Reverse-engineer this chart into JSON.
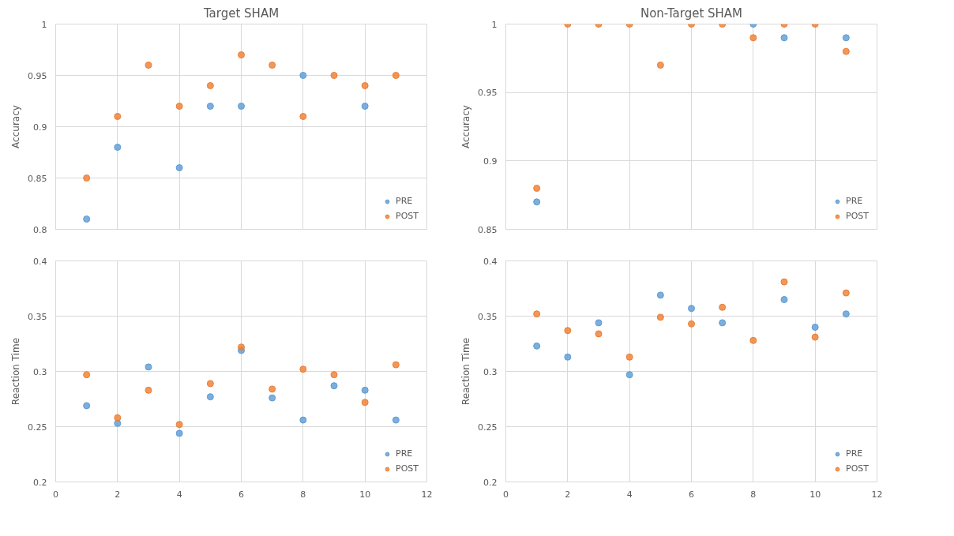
{
  "chart_data": [
    {
      "type": "scatter",
      "title": "Target SHAM",
      "ylabel": "Accuracy",
      "x": [
        1,
        2,
        3,
        4,
        5,
        6,
        7,
        8,
        9,
        10,
        11
      ],
      "xlim": [
        0,
        12
      ],
      "xticks": [
        0,
        2,
        4,
        6,
        8,
        10,
        12
      ],
      "ylim": [
        0.8,
        1
      ],
      "yticks": [
        0.8,
        0.85,
        0.9,
        0.95,
        1
      ],
      "tick_labels": "y",
      "grid": true,
      "legend": "bottom right",
      "marker": "circle",
      "series": [
        {
          "name": "PRE",
          "color": "#5b9bd5",
          "values": [
            0.81,
            0.88,
            null,
            0.86,
            0.92,
            0.92,
            null,
            0.95,
            null,
            0.92,
            null
          ]
        },
        {
          "name": "POST",
          "color": "#ed7d31",
          "values": [
            0.85,
            0.91,
            0.96,
            0.92,
            0.94,
            0.97,
            0.96,
            0.91,
            0.95,
            0.94,
            0.95
          ]
        }
      ]
    },
    {
      "type": "scatter",
      "title": "Non-Target SHAM",
      "ylabel": "Accuracy",
      "x": [
        1,
        2,
        3,
        4,
        5,
        6,
        7,
        8,
        9,
        10,
        11
      ],
      "xlim": [
        0,
        12
      ],
      "xticks": [
        0,
        2,
        4,
        6,
        8,
        10,
        12
      ],
      "ylim": [
        0.85,
        1
      ],
      "yticks": [
        0.85,
        0.9,
        0.95,
        1
      ],
      "tick_labels": "y",
      "grid": true,
      "legend": "bottom right",
      "marker": "circle",
      "series": [
        {
          "name": "PRE",
          "color": "#5b9bd5",
          "values": [
            0.87,
            null,
            null,
            null,
            null,
            null,
            null,
            1.0,
            0.99,
            null,
            0.99
          ]
        },
        {
          "name": "POST",
          "color": "#ed7d31",
          "values": [
            0.88,
            1.0,
            1.0,
            1.0,
            0.97,
            1.0,
            1.0,
            0.99,
            1.0,
            1.0,
            0.98
          ]
        }
      ]
    },
    {
      "type": "scatter",
      "ylabel": "Reaction Time",
      "x": [
        1,
        2,
        3,
        4,
        5,
        6,
        7,
        8,
        9,
        10,
        11
      ],
      "xlim": [
        0,
        12
      ],
      "xticks": [
        0,
        2,
        4,
        6,
        8,
        10,
        12
      ],
      "ylim": [
        0.2,
        0.4
      ],
      "yticks": [
        0.2,
        0.25,
        0.3,
        0.35,
        0.4
      ],
      "grid": true,
      "legend": "bottom right",
      "marker": "circle",
      "series": [
        {
          "name": "PRE",
          "color": "#5b9bd5",
          "values": [
            0.269,
            0.253,
            0.304,
            0.244,
            0.277,
            0.319,
            0.276,
            0.256,
            0.287,
            0.283,
            0.256
          ]
        },
        {
          "name": "POST",
          "color": "#ed7d31",
          "values": [
            0.297,
            0.258,
            0.283,
            0.252,
            0.289,
            0.322,
            0.284,
            0.302,
            0.297,
            0.272,
            0.306
          ]
        }
      ]
    },
    {
      "type": "scatter",
      "ylabel": "Reaction Time",
      "x": [
        1,
        2,
        3,
        4,
        5,
        6,
        7,
        8,
        9,
        10,
        11
      ],
      "xlim": [
        0,
        12
      ],
      "xticks": [
        0,
        2,
        4,
        6,
        8,
        10,
        12
      ],
      "ylim": [
        0.2,
        0.4
      ],
      "yticks": [
        0.2,
        0.25,
        0.3,
        0.35,
        0.4
      ],
      "grid": true,
      "legend": "bottom right",
      "marker": "circle",
      "series": [
        {
          "name": "PRE",
          "color": "#5b9bd5",
          "values": [
            0.323,
            0.313,
            0.344,
            0.297,
            0.369,
            0.357,
            0.344,
            null,
            0.365,
            0.34,
            0.352
          ]
        },
        {
          "name": "POST",
          "color": "#ed7d31",
          "values": [
            0.352,
            0.337,
            0.334,
            0.313,
            0.349,
            0.343,
            0.358,
            0.328,
            0.381,
            0.331,
            0.371
          ]
        }
      ]
    }
  ]
}
